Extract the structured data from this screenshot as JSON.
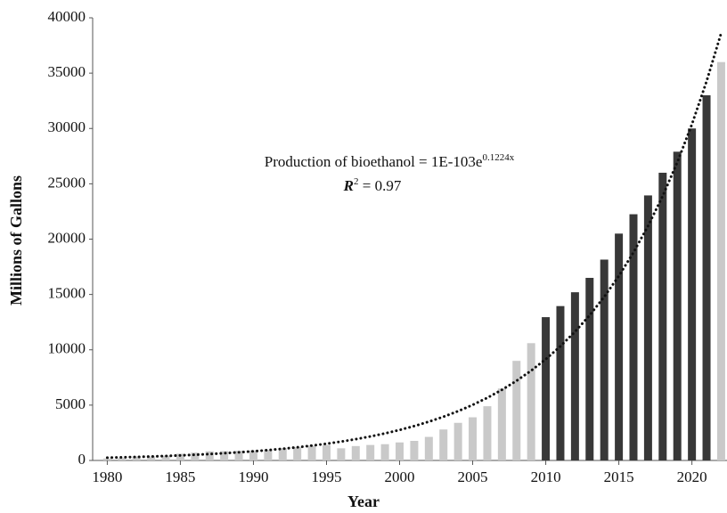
{
  "chart_data": {
    "type": "bar",
    "x_label": "Year",
    "y_label": "Millions of Gallons",
    "x": [
      1980,
      1981,
      1982,
      1983,
      1984,
      1985,
      1986,
      1987,
      1988,
      1989,
      1990,
      1991,
      1992,
      1993,
      1994,
      1995,
      1996,
      1997,
      1998,
      1999,
      2000,
      2001,
      2002,
      2003,
      2004,
      2005,
      2006,
      2007,
      2008,
      2009,
      2010,
      2011,
      2012,
      2013,
      2014,
      2015,
      2016,
      2017,
      2018,
      2019,
      2020,
      2021,
      2022
    ],
    "series": [
      {
        "color": "#c9c9c9",
        "values": [
          175,
          215,
          350,
          375,
          430,
          610,
          710,
          830,
          845,
          870,
          900,
          950,
          1100,
          1200,
          1350,
          1400,
          1100,
          1300,
          1400,
          1470,
          1630,
          1770,
          2130,
          2800,
          3400,
          3900,
          4900,
          6500,
          9000,
          10600,
          null,
          null,
          null,
          null,
          null,
          null,
          null,
          null,
          null,
          null,
          null,
          null,
          36000
        ]
      },
      {
        "color": "#383838",
        "values": [
          null,
          null,
          null,
          null,
          null,
          null,
          null,
          null,
          null,
          null,
          null,
          null,
          null,
          null,
          null,
          null,
          null,
          null,
          null,
          null,
          null,
          null,
          null,
          null,
          null,
          null,
          null,
          null,
          null,
          null,
          12950,
          13950,
          15200,
          16500,
          18150,
          20500,
          22250,
          23950,
          26000,
          27900,
          30000,
          33000,
          null
        ]
      }
    ],
    "trend": {
      "color": "#111111",
      "style": "dotted",
      "values": [
        250,
        282,
        318,
        358,
        404,
        456,
        514,
        579,
        653,
        736,
        830,
        936,
        1055,
        1190,
        1341,
        1512,
        1705,
        1923,
        2168,
        2444,
        2756,
        3107,
        3503,
        3950,
        4454,
        5021,
        5662,
        6383,
        7197,
        8115,
        9150,
        10316,
        11631,
        13114,
        14786,
        16672,
        18797,
        21194,
        23896,
        26942,
        30377,
        34250,
        38617
      ]
    },
    "annotations": [
      {
        "text": "Production of bioethanol = 1E-103e",
        "superscript": "0.1224x"
      },
      {
        "italic": "R",
        "superscript": "2",
        "text": " = 0.97"
      }
    ],
    "xlim": [
      1979,
      2022.4
    ],
    "xticks": [
      1980,
      1985,
      1990,
      1995,
      2000,
      2005,
      2010,
      2015,
      2020
    ],
    "ylim": [
      0,
      40000
    ],
    "yticks": [
      0,
      5000,
      10000,
      15000,
      20000,
      25000,
      30000,
      35000,
      40000
    ]
  }
}
